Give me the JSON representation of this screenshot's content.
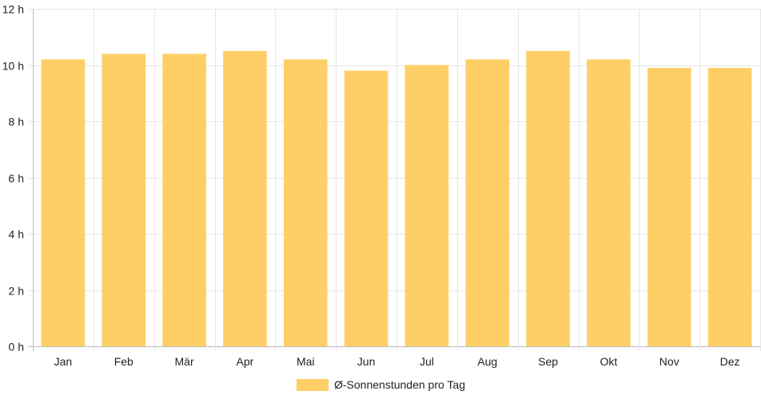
{
  "chart_data": {
    "type": "bar",
    "categories": [
      "Jan",
      "Feb",
      "Mär",
      "Apr",
      "Mai",
      "Jun",
      "Jul",
      "Aug",
      "Sep",
      "Okt",
      "Nov",
      "Dez"
    ],
    "series": [
      {
        "name": "Ø-Sonnenstunden pro Tag",
        "values": [
          10.2,
          10.4,
          10.4,
          10.5,
          10.2,
          9.8,
          10.0,
          10.2,
          10.5,
          10.2,
          9.9,
          9.9
        ]
      }
    ],
    "y_ticks": [
      "0 h",
      "2 h",
      "4 h",
      "6 h",
      "8 h",
      "10 h",
      "12 h"
    ],
    "ylim": [
      0,
      12
    ],
    "grid": true,
    "legend_position": "bottom",
    "bar_color": "#fecf66",
    "grid_color": "#e6e6e6"
  }
}
